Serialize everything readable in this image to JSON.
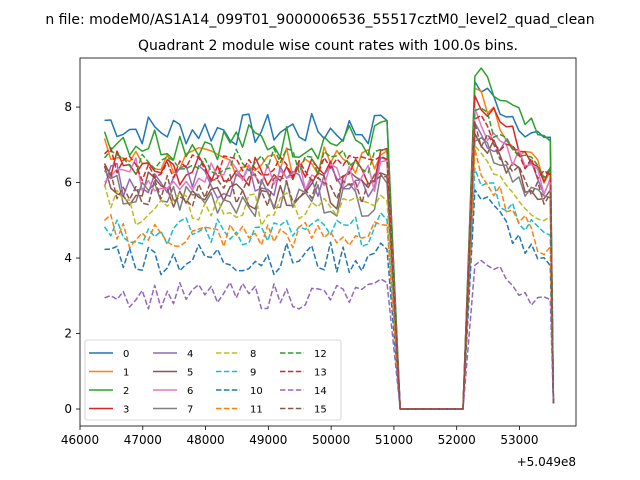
{
  "chart_data": {
    "type": "line",
    "suptitle": "n file: modeM0/AS1A14_099T01_9000006536_55517cztM0_level2_quad_clean",
    "title": "Quadrant 2 module wise count rates with 100.0s bins.",
    "xlabel": "",
    "ylabel": "",
    "x_offset_label": "+5.049e8",
    "xlim": [
      46000,
      53900
    ],
    "ylim": [
      -0.45,
      9.3
    ],
    "xticks": [
      46000,
      47000,
      48000,
      49000,
      50000,
      51000,
      52000,
      53000
    ],
    "xtick_labels": [
      "46000",
      "47000",
      "48000",
      "49000",
      "50000",
      "51000",
      "52000",
      "53000"
    ],
    "yticks": [
      0,
      2,
      4,
      6,
      8
    ],
    "ytick_labels": [
      "0",
      "2",
      "4",
      "6",
      "8"
    ],
    "legend_position": "lower-left",
    "x_segments": [
      {
        "start": 46390,
        "end": 50890,
        "step": 100
      },
      {
        "start": 51100,
        "end": 52100,
        "step": 100
      },
      {
        "start": 52290,
        "end": 53390,
        "step": 100
      },
      {
        "start": 53490,
        "end": 53540,
        "step": 50
      }
    ],
    "series": [
      {
        "name": "0",
        "color": "#1f77b4",
        "dash": "solid",
        "active_level": 7.4,
        "second_level": 7.7,
        "last_value": 0.2,
        "peak": 8.6,
        "noise": 0.22
      },
      {
        "name": "1",
        "color": "#ff7f0e",
        "dash": "solid",
        "active_level": 6.55,
        "second_level": 6.8,
        "last_value": 0.15,
        "peak": 8.4,
        "noise": 0.2
      },
      {
        "name": "2",
        "color": "#2ca02c",
        "dash": "solid",
        "active_level": 7.1,
        "second_level": 7.6,
        "last_value": 0.2,
        "peak": 8.85,
        "noise": 0.25
      },
      {
        "name": "3",
        "color": "#d62728",
        "dash": "solid",
        "active_level": 6.3,
        "second_level": 6.9,
        "last_value": 0.15,
        "peak": 8.4,
        "noise": 0.2
      },
      {
        "name": "4",
        "color": "#9467bd",
        "dash": "solid",
        "active_level": 6.0,
        "second_level": 6.6,
        "last_value": 0.15,
        "peak": 7.5,
        "noise": 0.25
      },
      {
        "name": "5",
        "color": "#8c564b",
        "dash": "solid",
        "active_level": 5.8,
        "second_level": 6.3,
        "last_value": 0.15,
        "peak": 7.2,
        "noise": 0.25
      },
      {
        "name": "6",
        "color": "#e377c2",
        "dash": "solid",
        "active_level": 6.2,
        "second_level": 6.6,
        "last_value": 0.15,
        "peak": 7.8,
        "noise": 0.25
      },
      {
        "name": "7",
        "color": "#7f7f7f",
        "dash": "solid",
        "active_level": 5.6,
        "second_level": 6.1,
        "last_value": 0.15,
        "peak": 7.3,
        "noise": 0.25
      },
      {
        "name": "8",
        "color": "#bcbd22",
        "dash": "dashed",
        "active_level": 5.3,
        "second_level": 5.6,
        "last_value": 0.15,
        "peak": 7.0,
        "noise": 0.22
      },
      {
        "name": "9",
        "color": "#17becf",
        "dash": "dashed",
        "active_level": 4.7,
        "second_level": 5.1,
        "last_value": 0.15,
        "peak": 6.2,
        "noise": 0.2
      },
      {
        "name": "10",
        "color": "#1f77b4",
        "dash": "dashed",
        "active_level": 4.0,
        "second_level": 4.3,
        "last_value": 0.15,
        "peak": 5.8,
        "noise": 0.22
      },
      {
        "name": "11",
        "color": "#ff7f0e",
        "dash": "dashed",
        "active_level": 4.6,
        "second_level": 4.8,
        "last_value": 0.15,
        "peak": 6.6,
        "noise": 0.2
      },
      {
        "name": "12",
        "color": "#2ca02c",
        "dash": "dashed",
        "active_level": 6.55,
        "second_level": 6.9,
        "last_value": 0.15,
        "peak": 7.9,
        "noise": 0.18
      },
      {
        "name": "13",
        "color": "#d62728",
        "dash": "dashed",
        "active_level": 6.4,
        "second_level": 6.7,
        "last_value": 0.15,
        "peak": 7.7,
        "noise": 0.18
      },
      {
        "name": "14",
        "color": "#9467bd",
        "dash": "dashed",
        "active_level": 3.0,
        "second_level": 3.4,
        "last_value": 0.15,
        "peak": 4.0,
        "noise": 0.18
      },
      {
        "name": "15",
        "color": "#8c564b",
        "dash": "dashed",
        "active_level": 5.8,
        "second_level": 6.2,
        "last_value": 0.15,
        "peak": 7.3,
        "noise": 0.22
      }
    ]
  }
}
